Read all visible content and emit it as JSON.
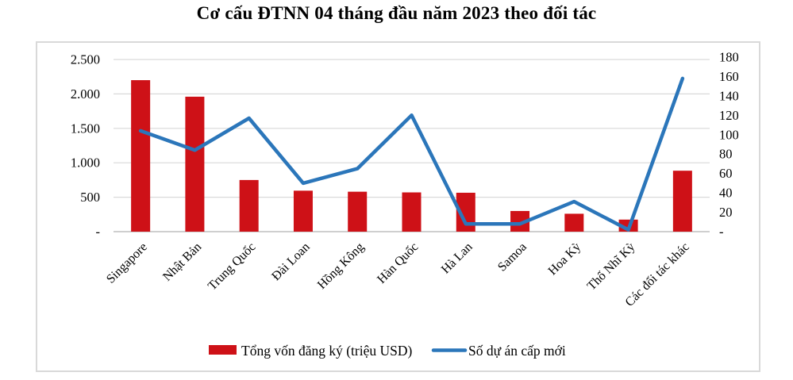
{
  "title": "Cơ cấu ĐTNN 04 tháng đầu năm 2023 theo đối tác",
  "colors": {
    "bar": "#ce1117",
    "line": "#2b76ba",
    "grid": "#d9d9d9",
    "baseline": "#bfbfbf",
    "border": "#d9d9d9",
    "text": "#000000",
    "background": "#ffffff"
  },
  "chart_data": {
    "type": "bar",
    "subtype": "combo-bar-line-dual-axis",
    "title": "Cơ cấu ĐTNN 04 tháng đầu năm 2023 theo đối tác",
    "categories": [
      "Singapore",
      "Nhật Bản",
      "Trung Quốc",
      "Đài Loan",
      "Hồng Kông",
      "Hàn Quốc",
      "Hà Lan",
      "Samoa",
      "Hoa Kỳ",
      "Thổ Nhĩ Kỳ",
      "Các đối tác khác"
    ],
    "series": [
      {
        "name": "Tổng vốn đăng ký (triệu USD)",
        "type": "bar",
        "axis": "left",
        "values": [
          2200,
          1960,
          750,
          595,
          580,
          570,
          565,
          300,
          260,
          175,
          885
        ]
      },
      {
        "name": "Số dự án cấp mới",
        "type": "line",
        "axis": "right",
        "values": [
          104,
          84,
          117,
          50,
          65,
          120,
          8,
          8,
          31,
          2,
          158
        ]
      }
    ],
    "left_axis": {
      "min": 0,
      "max": 2500,
      "step": 500,
      "tick_labels": [
        "-",
        "500",
        "1.000",
        "1.500",
        "2.000",
        "2.500"
      ]
    },
    "right_axis": {
      "min": 0,
      "max": 180,
      "step": 20,
      "tick_labels": [
        "-",
        "20",
        "40",
        "60",
        "80",
        "100",
        "120",
        "140",
        "160",
        "180"
      ]
    },
    "grid": true,
    "legend_position": "bottom",
    "xlabel": "",
    "ylabel": ""
  }
}
